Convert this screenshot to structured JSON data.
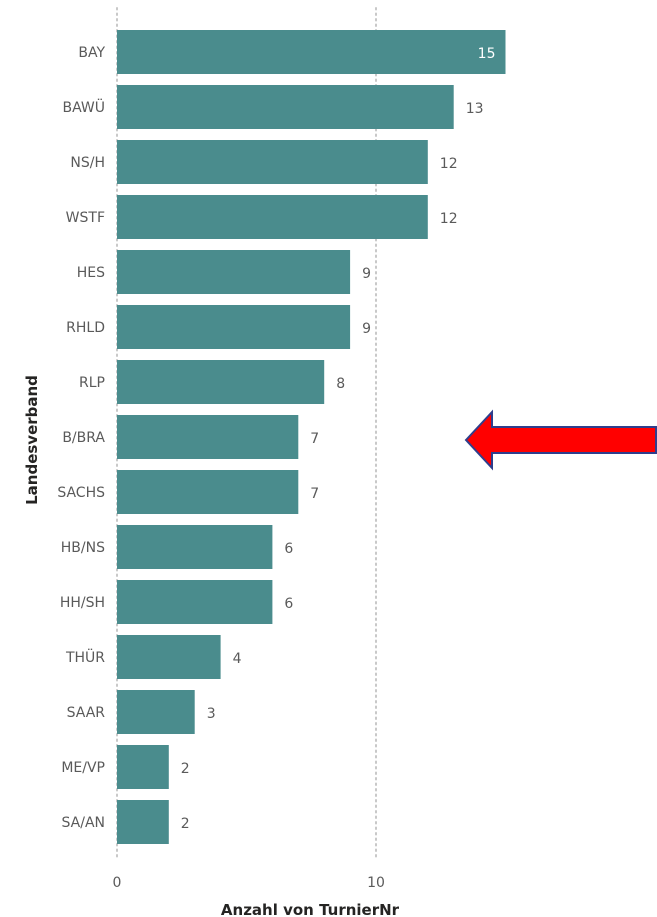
{
  "chart_data": {
    "type": "bar",
    "orientation": "horizontal",
    "title": "",
    "xlabel": "Anzahl von TurnierNr",
    "ylabel": "Landesverband",
    "categories": [
      "BAY",
      "BAWÜ",
      "NS/H",
      "WSTF",
      "HES",
      "RHLD",
      "RLP",
      "B/BRA",
      "SACHS",
      "HB/NS",
      "HH/SH",
      "THÜR",
      "SAAR",
      "ME/VP",
      "SA/AN"
    ],
    "values": [
      15,
      13,
      12,
      12,
      9,
      9,
      8,
      7,
      7,
      6,
      6,
      4,
      3,
      2,
      2
    ],
    "xlim": [
      0,
      15
    ],
    "xticks": [
      0,
      10
    ],
    "grid": "vertical dotted",
    "legend": "none",
    "bar_color": "#4A8C8D",
    "data_labels": true,
    "annotation": {
      "kind": "arrow",
      "direction": "left",
      "fill": "#FF0000",
      "stroke": "#2F3E8C"
    }
  }
}
